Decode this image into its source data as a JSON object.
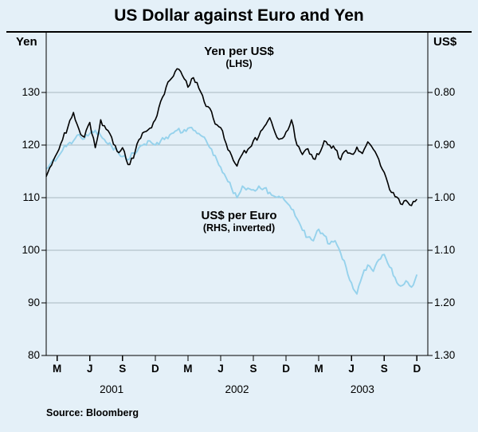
{
  "title": "US Dollar against Euro and Yen",
  "source": "Source: Bloomberg",
  "left_axis_label": "Yen",
  "right_axis_label": "US$",
  "annotations": {
    "series1_label": "Yen per US$",
    "series1_sub": "(LHS)",
    "series2_label": "US$ per Euro",
    "series2_sub": "(RHS, inverted)"
  },
  "colors": {
    "background": "#e4f0f8",
    "grid": "#a8b8c0",
    "frame": "#000000",
    "yen_line": "#000000",
    "euro_line": "#96d2ec"
  },
  "chart_data": {
    "type": "line",
    "title": "US Dollar against Euro and Yen",
    "left_axis": {
      "label": "Yen",
      "ticks": [
        130,
        120,
        110,
        100,
        90,
        80
      ],
      "min": 80,
      "max": 141.5
    },
    "right_axis": {
      "label": "US$",
      "ticks": [
        "0.80",
        "0.90",
        "1.00",
        "1.10",
        "1.20",
        "1.30"
      ],
      "inverted": true
    },
    "x_axis": {
      "start": "Feb 2001",
      "end": "Dec 2003",
      "total_months": 35,
      "tick_labels": [
        "M",
        "J",
        "S",
        "D",
        "M",
        "J",
        "S",
        "D",
        "M",
        "J",
        "S",
        "D"
      ],
      "tick_months": [
        1,
        4,
        7,
        10,
        13,
        16,
        19,
        22,
        25,
        28,
        31,
        34
      ],
      "years": [
        {
          "label": "2001",
          "m": 6
        },
        {
          "label": "2002",
          "m": 17.5
        },
        {
          "label": "2003",
          "m": 29
        }
      ]
    },
    "grid": true,
    "legend": "inline-annotations",
    "series": [
      {
        "name": "Yen per US$ (LHS)",
        "axis": "left",
        "color": "#000000",
        "draw_order": 2,
        "x_start": 0,
        "x_step": 0.5,
        "values": [
          114.0,
          116.2,
          118.5,
          121.0,
          123.5,
          126.2,
          123.0,
          121.5,
          124.3,
          119.5,
          124.8,
          123.0,
          121.5,
          118.8,
          119.5,
          116.3,
          117.5,
          121.0,
          122.5,
          123.2,
          124.8,
          128.3,
          131.0,
          132.7,
          134.5,
          133.2,
          131.0,
          132.8,
          130.8,
          128.2,
          127.0,
          124.0,
          123.3,
          120.3,
          118.0,
          116.0,
          118.3,
          119.2,
          120.8,
          121.7,
          123.5,
          125.2,
          122.3,
          121.2,
          122.5,
          124.8,
          120.0,
          118.2,
          119.3,
          117.4,
          118.2,
          120.8,
          120.0,
          119.2,
          117.2,
          119.0,
          118.3,
          119.6,
          118.4,
          120.6,
          119.2,
          117.3,
          114.8,
          111.5,
          110.2,
          108.8,
          109.5,
          108.5,
          109.7
        ]
      },
      {
        "name": "US$ per Euro (RHS, inverted)",
        "axis": "right",
        "color": "#96d2ec",
        "draw_order": 1,
        "x_start": 0,
        "x_step": 0.5,
        "values": [
          0.945,
          0.932,
          0.925,
          0.91,
          0.898,
          0.892,
          0.88,
          0.888,
          0.878,
          0.872,
          0.882,
          0.895,
          0.902,
          0.91,
          0.922,
          0.928,
          0.915,
          0.905,
          0.898,
          0.892,
          0.9,
          0.892,
          0.885,
          0.878,
          0.872,
          0.876,
          0.868,
          0.872,
          0.878,
          0.885,
          0.905,
          0.92,
          0.942,
          0.962,
          0.982,
          1.0,
          0.978,
          0.982,
          0.985,
          0.978,
          0.982,
          0.99,
          0.998,
          1.0,
          1.008,
          1.022,
          1.04,
          1.062,
          1.075,
          1.082,
          1.06,
          1.072,
          1.088,
          1.082,
          1.105,
          1.132,
          1.162,
          1.183,
          1.148,
          1.128,
          1.14,
          1.118,
          1.108,
          1.132,
          1.152,
          1.168,
          1.158,
          1.17,
          1.146
        ]
      }
    ]
  }
}
